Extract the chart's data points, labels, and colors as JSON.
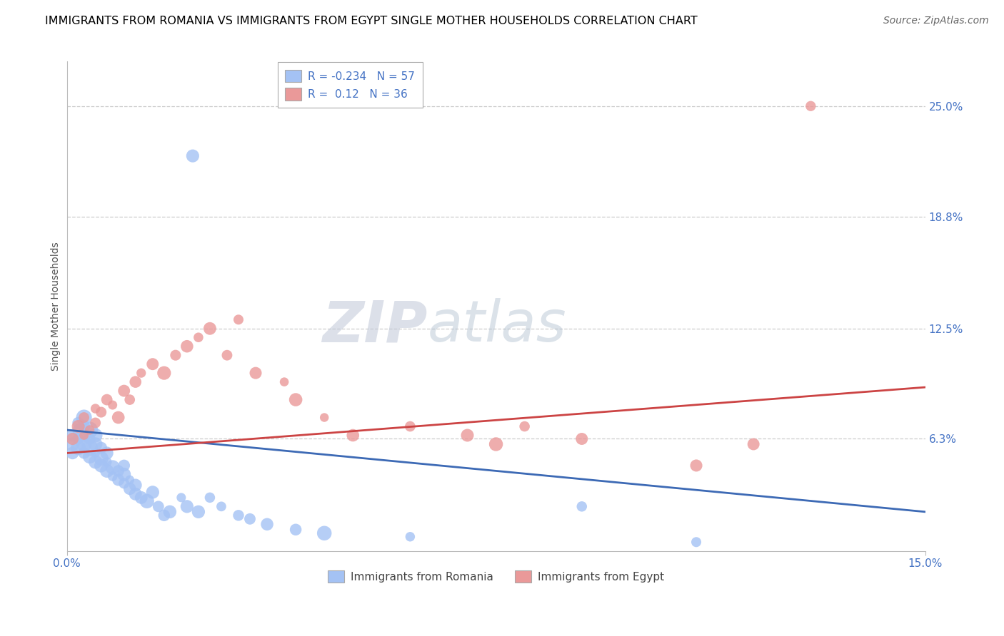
{
  "title": "IMMIGRANTS FROM ROMANIA VS IMMIGRANTS FROM EGYPT SINGLE MOTHER HOUSEHOLDS CORRELATION CHART",
  "source": "Source: ZipAtlas.com",
  "ylabel": "Single Mother Households",
  "xlim": [
    0.0,
    0.15
  ],
  "ylim": [
    0.0,
    0.275
  ],
  "ytick_values": [
    0.063,
    0.125,
    0.188,
    0.25
  ],
  "romania_R": -0.234,
  "romania_N": 57,
  "egypt_R": 0.12,
  "egypt_N": 36,
  "romania_color": "#a4c2f4",
  "egypt_color": "#ea9999",
  "romania_line_color": "#3d6ab5",
  "egypt_line_color": "#cc4444",
  "romania_x": [
    0.001,
    0.001,
    0.001,
    0.002,
    0.002,
    0.002,
    0.002,
    0.003,
    0.003,
    0.003,
    0.003,
    0.003,
    0.004,
    0.004,
    0.004,
    0.004,
    0.005,
    0.005,
    0.005,
    0.005,
    0.006,
    0.006,
    0.006,
    0.007,
    0.007,
    0.007,
    0.008,
    0.008,
    0.009,
    0.009,
    0.01,
    0.01,
    0.01,
    0.011,
    0.011,
    0.012,
    0.012,
    0.013,
    0.014,
    0.015,
    0.016,
    0.017,
    0.018,
    0.02,
    0.021,
    0.023,
    0.025,
    0.027,
    0.03,
    0.032,
    0.035,
    0.04,
    0.045,
    0.06,
    0.09,
    0.11,
    0.022
  ],
  "romania_y": [
    0.065,
    0.06,
    0.055,
    0.068,
    0.063,
    0.058,
    0.072,
    0.07,
    0.065,
    0.06,
    0.055,
    0.075,
    0.063,
    0.058,
    0.053,
    0.068,
    0.055,
    0.06,
    0.05,
    0.065,
    0.052,
    0.048,
    0.058,
    0.045,
    0.05,
    0.055,
    0.042,
    0.047,
    0.04,
    0.045,
    0.038,
    0.043,
    0.048,
    0.035,
    0.04,
    0.032,
    0.037,
    0.03,
    0.028,
    0.033,
    0.025,
    0.02,
    0.022,
    0.03,
    0.025,
    0.022,
    0.03,
    0.025,
    0.02,
    0.018,
    0.015,
    0.012,
    0.01,
    0.008,
    0.025,
    0.005,
    0.222
  ],
  "egypt_x": [
    0.001,
    0.002,
    0.003,
    0.003,
    0.004,
    0.005,
    0.005,
    0.006,
    0.007,
    0.008,
    0.009,
    0.01,
    0.011,
    0.012,
    0.013,
    0.015,
    0.017,
    0.019,
    0.021,
    0.023,
    0.025,
    0.028,
    0.03,
    0.033,
    0.038,
    0.04,
    0.045,
    0.05,
    0.06,
    0.07,
    0.075,
    0.08,
    0.09,
    0.11,
    0.12,
    0.13
  ],
  "egypt_y": [
    0.063,
    0.07,
    0.065,
    0.075,
    0.068,
    0.072,
    0.08,
    0.078,
    0.085,
    0.082,
    0.075,
    0.09,
    0.085,
    0.095,
    0.1,
    0.105,
    0.1,
    0.11,
    0.115,
    0.12,
    0.125,
    0.11,
    0.13,
    0.1,
    0.095,
    0.085,
    0.075,
    0.065,
    0.07,
    0.065,
    0.06,
    0.07,
    0.063,
    0.048,
    0.06,
    0.25
  ],
  "title_fontsize": 11.5,
  "axis_label_fontsize": 10,
  "tick_fontsize": 11,
  "legend_fontsize": 11,
  "source_fontsize": 10
}
